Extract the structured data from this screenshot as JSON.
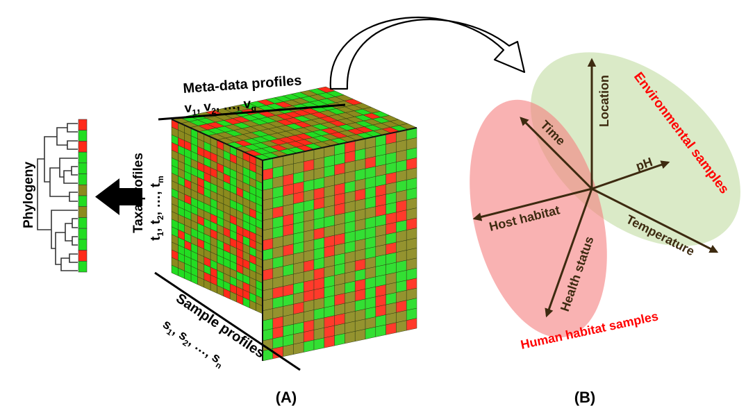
{
  "panel_a": {
    "caption": "(A)",
    "phylogeny_label": "Phylogeny",
    "metadata_title": "Meta-data profiles",
    "metadata_list": {
      "a": "v",
      "a_sub": "1",
      "b": "v",
      "b_sub": "2",
      "sep": ", …, ",
      "c": "v",
      "c_sub": "q"
    },
    "taxa_title": "Taxa profiles",
    "taxa_list": {
      "a": "t",
      "a_sub": "1",
      "b": "t",
      "b_sub": "2",
      "sep": ", …, ",
      "c": "t",
      "c_sub": "m"
    },
    "sample_title": "Sample profiles",
    "sample_list": {
      "a": "s",
      "a_sub": "1",
      "b": "s",
      "b_sub": "2",
      "sep": ", …, ",
      "c": "s",
      "c_sub": "n"
    },
    "phylogeny_strip": [
      "r",
      "g",
      "r",
      "g",
      "g",
      "g",
      "o",
      "g",
      "o",
      "g",
      "g",
      "g",
      "r",
      "g"
    ]
  },
  "panel_b": {
    "caption": "(B)",
    "env_group_label": "Environmental samples",
    "human_group_label": "Human habitat samples",
    "axes": {
      "location": "Location",
      "time": "Time",
      "ph": "pH",
      "host_habitat": "Host habitat",
      "temperature": "Temperature",
      "health_status": "Health status"
    }
  },
  "colors": {
    "red": "#ff2a1a",
    "green": "#22dd22",
    "olive": "#8c8a1e",
    "env_ellipse": "#d8e9c4",
    "human_ellipse": "#f7a6a6",
    "group_label": "#ff0000",
    "axis": "#3d2a10"
  }
}
